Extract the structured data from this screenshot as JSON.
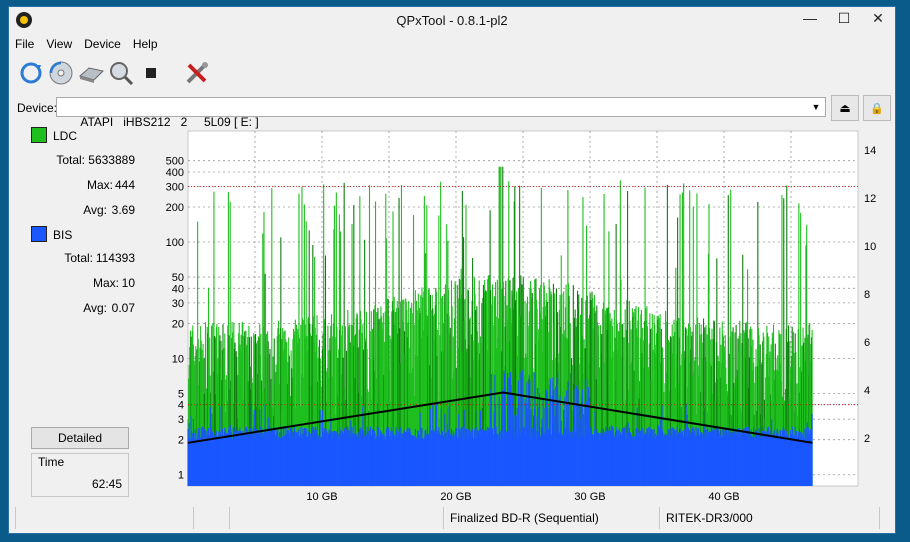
{
  "window": {
    "title": "QPxTool - 0.8.1-pl2",
    "min": "—",
    "max": "☐",
    "close": "✕"
  },
  "menu": [
    "File",
    "View",
    "Device",
    "Help"
  ],
  "toolbar": [
    "refresh-icon",
    "disc-scan-icon",
    "drive-icon",
    "zoom-disc-icon",
    "stop-icon",
    "tools-icon"
  ],
  "device": {
    "label": "Device:",
    "value": "ATAPI   iHBS212   2     5L09 [ E: ]",
    "eject_glyph": "⏏",
    "lock_glyph": "🔒"
  },
  "legend": {
    "ldc": {
      "name": "LDC",
      "color": "#1fbf1f",
      "total_label": "Total:",
      "total": "5633889",
      "max_label": "Max:",
      "max": "444",
      "avg_label": "Avg:",
      "avg": "3.69"
    },
    "bis": {
      "name": "BIS",
      "color": "#1a57ff",
      "total_label": "Total:",
      "total": "114393",
      "max_label": "Max:",
      "max": "10",
      "avg_label": "Avg:",
      "avg": "0.07"
    }
  },
  "detailed_label": "Detailed",
  "time": {
    "label": "Time",
    "value": "62:45"
  },
  "status": {
    "seg1": "",
    "seg2": "",
    "seg3": "",
    "disc": "Finalized BD-R (Sequential)",
    "media": "RITEK-DR3/000"
  },
  "chart_data": {
    "type": "area",
    "x_unit": "GB",
    "x_range": [
      0,
      50
    ],
    "x_ticks": [
      10,
      20,
      30,
      40
    ],
    "x_tick_labels": [
      "10 GB",
      "20 GB",
      "30 GB",
      "40 GB"
    ],
    "x_data_end": 46.6,
    "y_scale": "log",
    "y_range": [
      0.8,
      900
    ],
    "y_ticks": [
      1,
      2,
      3,
      4,
      5,
      10,
      20,
      30,
      40,
      50,
      100,
      200,
      300,
      400,
      500
    ],
    "y2_range": [
      0,
      14.8
    ],
    "y2_ticks": [
      2,
      4,
      6,
      8,
      10,
      12,
      14
    ],
    "grid": true,
    "red_lines_left": [
      4,
      300
    ],
    "series": [
      {
        "name": "LDC",
        "color": "#1fbf1f",
        "typical_low": 3,
        "typical_high": 50,
        "max": 444
      },
      {
        "name": "BIS",
        "color": "#1a57ff",
        "typical": 2,
        "max": 10
      },
      {
        "name": "",
        "color": "#000000",
        "axis": "right",
        "x": [
          0,
          23.5,
          46.6
        ],
        "y": [
          1.8,
          3.9,
          1.8
        ]
      }
    ]
  }
}
